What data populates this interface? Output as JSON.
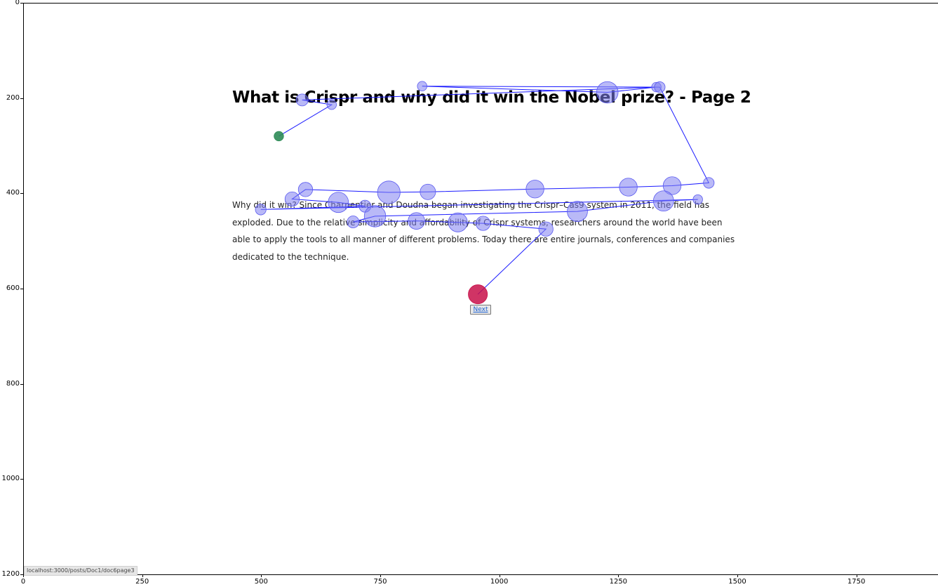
{
  "page": {
    "title": "What is Crispr and why did it win the Nobel prize? - Page 2",
    "body": "Why did it win? Since Charpentier and Doudna began investigating the Crispr–Cas9 system in 2011, the field has exploded. Due to the relative simplicity and affordability of Crispr systems, researchers around the world have been able to apply the tools to all manner of different problems. Today there are entire journals, conferences and companies dedicated to the technique.",
    "next_label": "Next",
    "status_url": "localhost:3000/posts/Doc1/doc6page3"
  },
  "axes": {
    "x_ticks": [
      "0",
      "250",
      "500",
      "750",
      "1000",
      "1250",
      "1500",
      "1750"
    ],
    "y_ticks": [
      "0",
      "200",
      "400",
      "600",
      "800",
      "1000",
      "1200"
    ]
  },
  "colors": {
    "fixation_fill": "#8080f0",
    "scanpath_line": "#1a1aff",
    "start_fixation": "#2e8b57",
    "end_fixation": "#c8104a"
  },
  "chart_data": {
    "type": "scatter",
    "title": "",
    "xlabel": "",
    "ylabel": "",
    "xlim": [
      0,
      1920
    ],
    "ylim": [
      1200,
      0
    ],
    "x_ticks": [
      0,
      250,
      500,
      750,
      1000,
      1250,
      1500,
      1750
    ],
    "y_ticks": [
      0,
      200,
      400,
      600,
      800,
      1000,
      1200
    ],
    "series": [
      {
        "values_note_free": true,
        "points": [
          {
            "x": 537,
            "y": 280,
            "size": 8,
            "role": "start"
          },
          {
            "x": 648,
            "y": 214,
            "size": 8
          },
          {
            "x": 586,
            "y": 204,
            "size": 10
          },
          {
            "x": 1330,
            "y": 177,
            "size": 8
          },
          {
            "x": 1227,
            "y": 188,
            "size": 18
          },
          {
            "x": 838,
            "y": 175,
            "size": 8
          },
          {
            "x": 1337,
            "y": 177,
            "size": 9
          },
          {
            "x": 1440,
            "y": 378,
            "size": 9
          },
          {
            "x": 1363,
            "y": 384,
            "size": 15
          },
          {
            "x": 1271,
            "y": 387,
            "size": 15
          },
          {
            "x": 1075,
            "y": 391,
            "size": 15
          },
          {
            "x": 850,
            "y": 397,
            "size": 13
          },
          {
            "x": 768,
            "y": 398,
            "size": 19
          },
          {
            "x": 593,
            "y": 392,
            "size": 12
          },
          {
            "x": 565,
            "y": 412,
            "size": 12
          },
          {
            "x": 662,
            "y": 419,
            "size": 17
          },
          {
            "x": 718,
            "y": 427,
            "size": 10
          },
          {
            "x": 499,
            "y": 434,
            "size": 9
          },
          {
            "x": 1417,
            "y": 413,
            "size": 8
          },
          {
            "x": 1345,
            "y": 416,
            "size": 17
          },
          {
            "x": 1164,
            "y": 438,
            "size": 17
          },
          {
            "x": 739,
            "y": 448,
            "size": 18
          },
          {
            "x": 693,
            "y": 460,
            "size": 10
          },
          {
            "x": 826,
            "y": 458,
            "size": 14
          },
          {
            "x": 913,
            "y": 461,
            "size": 16
          },
          {
            "x": 966,
            "y": 463,
            "size": 12
          },
          {
            "x": 1098,
            "y": 475,
            "size": 12
          },
          {
            "x": 955,
            "y": 612,
            "size": 16,
            "role": "end"
          }
        ]
      }
    ]
  }
}
